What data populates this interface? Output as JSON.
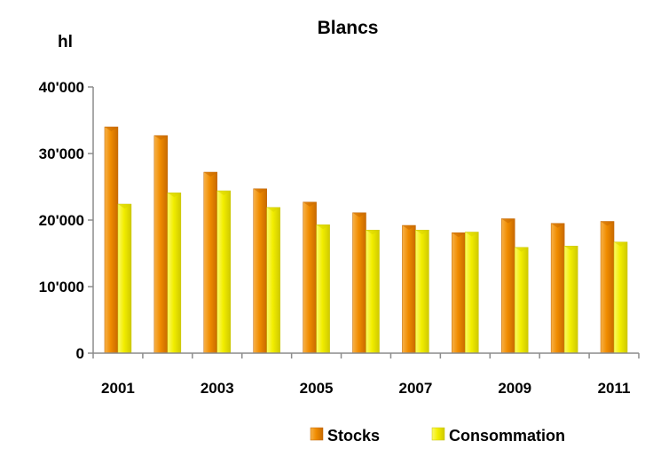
{
  "chart_data": {
    "type": "bar",
    "title": "Blancs",
    "unit_label": "hl",
    "xlabel": "",
    "ylabel": "",
    "categories": [
      "2001",
      "2002",
      "2003",
      "2004",
      "2005",
      "2006",
      "2007",
      "2008",
      "2009",
      "2010",
      "2011"
    ],
    "x_tick_labels": [
      "2001",
      "2003",
      "2005",
      "2007",
      "2009",
      "2011"
    ],
    "y_ticks": [
      0,
      10000,
      20000,
      30000,
      40000
    ],
    "y_tick_labels": [
      "0",
      "10'000",
      "20'000",
      "30'000",
      "40'000"
    ],
    "ylim": [
      0,
      40000
    ],
    "grid": false,
    "legend_position": "bottom",
    "series": [
      {
        "name": "Stocks",
        "color": "#f08c00",
        "values": [
          34000,
          32700,
          27200,
          24700,
          22700,
          21100,
          19200,
          18100,
          20200,
          19500,
          19800
        ]
      },
      {
        "name": "Consommation",
        "color": "#f2ee00",
        "values": [
          22400,
          24100,
          24400,
          21900,
          19300,
          18500,
          18500,
          18200,
          15900,
          16100,
          16700
        ]
      }
    ]
  }
}
